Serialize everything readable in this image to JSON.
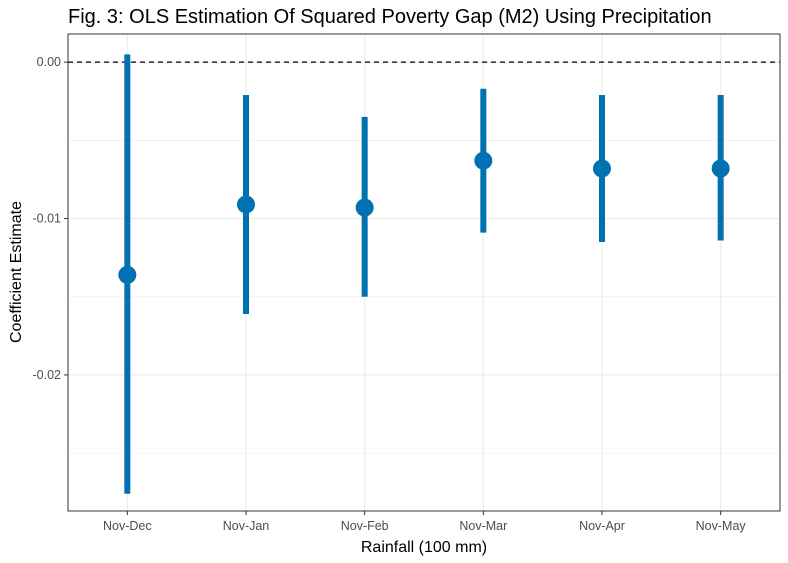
{
  "chart_data": {
    "type": "scatter",
    "title": "Fig. 3: OLS Estimation Of Squared Poverty Gap (M2) Using Precipitation",
    "xlabel": "Rainfall (100 mm)",
    "ylabel": "Coefficient Estimate",
    "categories": [
      "Nov-Dec",
      "Nov-Jan",
      "Nov-Feb",
      "Nov-Mar",
      "Nov-Apr",
      "Nov-May"
    ],
    "estimates": [
      -0.0136,
      -0.0091,
      -0.0093,
      -0.0063,
      -0.0068,
      -0.0068
    ],
    "ci_lower": [
      -0.0276,
      -0.0161,
      -0.015,
      -0.0109,
      -0.0115,
      -0.0114
    ],
    "ci_upper": [
      0.0005,
      -0.0021,
      -0.0035,
      -0.0017,
      -0.0021,
      -0.0021
    ],
    "yticks": [
      0.0,
      -0.01,
      -0.02
    ],
    "ytick_labels": [
      "0.00",
      "-0.01",
      "-0.02"
    ],
    "ylim": [
      -0.0287,
      0.0018
    ],
    "reference_line": 0.0,
    "grid": true,
    "colors": {
      "series": "#0072b2",
      "reference": "#000000",
      "grid": "#ebebeb",
      "panel_border": "#333333"
    }
  }
}
